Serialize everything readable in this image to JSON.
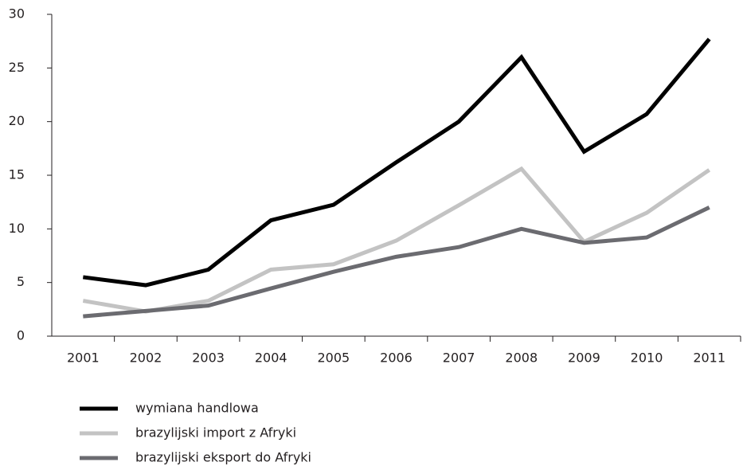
{
  "chart_data": {
    "type": "line",
    "categories": [
      "2001",
      "2002",
      "2003",
      "2004",
      "2005",
      "2006",
      "2007",
      "2008",
      "2009",
      "2010",
      "2011"
    ],
    "series": [
      {
        "name": "wymiana handlowa",
        "color": "#000000",
        "values": [
          5.5,
          4.75,
          6.2,
          10.8,
          12.25,
          16.2,
          20,
          26,
          17.2,
          20.7,
          27.7
        ]
      },
      {
        "name": "brazylijski import z Afryki",
        "color": "#c3c3c3",
        "values": [
          3.3,
          2.3,
          3.3,
          6.2,
          6.7,
          8.9,
          12.2,
          15.6,
          8.8,
          11.5,
          15.5
        ]
      },
      {
        "name": "brazylijski eksport do Afryki",
        "color": "#6b6b70",
        "values": [
          1.85,
          2.35,
          2.85,
          4.45,
          6,
          7.4,
          8.3,
          10,
          8.7,
          9.2,
          12
        ]
      }
    ],
    "ylim": [
      0,
      30
    ],
    "yticks": [
      0,
      5,
      10,
      15,
      20,
      25,
      30
    ],
    "grid": false
  }
}
